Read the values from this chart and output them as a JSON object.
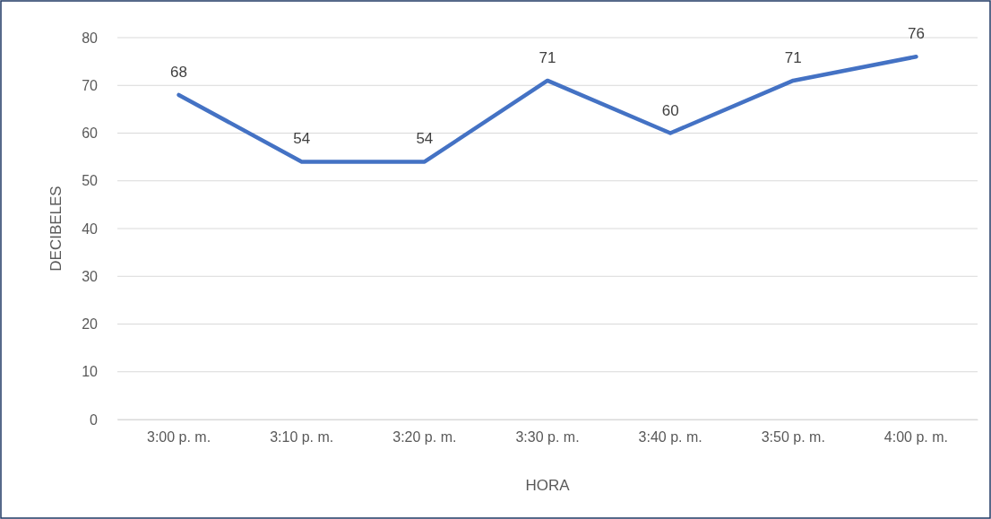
{
  "chart_data": {
    "type": "line",
    "xlabel": "HORA",
    "ylabel": "DECIBELES",
    "categories": [
      "3:00 p. m.",
      "3:10 p. m.",
      "3:20 p. m.",
      "3:30 p. m.",
      "3:40 p. m.",
      "3:50 p. m.",
      "4:00 p. m."
    ],
    "series": [
      {
        "color": "#4472c4",
        "values": [
          68,
          54,
          54,
          71,
          60,
          71,
          76
        ]
      }
    ],
    "ylim": [
      0,
      80
    ],
    "yticks": [
      0,
      10,
      20,
      30,
      40,
      50,
      60,
      70,
      80
    ],
    "grid": "y",
    "data_labels": true,
    "marker": "none",
    "line_style": "solid"
  }
}
